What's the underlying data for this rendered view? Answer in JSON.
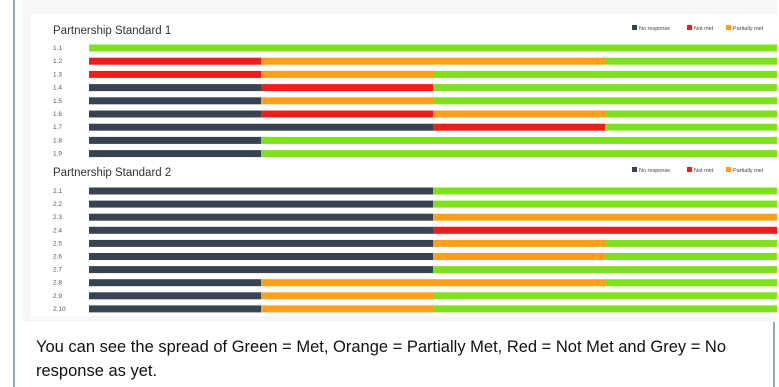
{
  "colors": {
    "no_response": "#374351",
    "not_met": "#f01b1b",
    "partially_met": "#ff9f1a",
    "met": "#7fe01c"
  },
  "chart_data": [
    {
      "type": "bar",
      "stacked": true,
      "orientation": "horizontal",
      "title": "Partnership Standard 1",
      "legend": [
        "No response",
        "Not met",
        "Partially met",
        "Met"
      ],
      "legend_position": "top-right",
      "xlim": [
        0,
        4
      ],
      "categories": [
        "1.1",
        "1.2",
        "1.3",
        "1.4",
        "1.5",
        "1.6",
        "1.7",
        "1.8",
        "1.9"
      ],
      "series": [
        {
          "name": "No response",
          "values": [
            0,
            0,
            0,
            1,
            1,
            1,
            2,
            1,
            1
          ]
        },
        {
          "name": "Not met",
          "values": [
            0,
            1,
            1,
            1,
            0,
            1,
            1,
            0,
            0
          ]
        },
        {
          "name": "Partially met",
          "values": [
            0,
            2,
            1,
            0,
            1,
            1,
            0,
            0,
            0
          ]
        },
        {
          "name": "Met",
          "values": [
            4,
            1,
            2,
            2,
            2,
            1,
            1,
            3,
            3
          ]
        }
      ]
    },
    {
      "type": "bar",
      "stacked": true,
      "orientation": "horizontal",
      "title": "Partnership Standard 2",
      "legend": [
        "No response",
        "Not met",
        "Partially met",
        "Met"
      ],
      "legend_position": "top-right",
      "xlim": [
        0,
        4
      ],
      "categories": [
        "2.1",
        "2.2",
        "2.3",
        "2.4",
        "2.5",
        "2.6",
        "2.7",
        "2.8",
        "2.9",
        "2.10"
      ],
      "series": [
        {
          "name": "No response",
          "values": [
            2,
            2,
            2,
            2,
            2,
            2,
            2,
            1,
            1,
            1
          ]
        },
        {
          "name": "Not met",
          "values": [
            0,
            0,
            0,
            2,
            0,
            0,
            0,
            0,
            0,
            0
          ]
        },
        {
          "name": "Partially met",
          "values": [
            0,
            0,
            2,
            0,
            1,
            1,
            0,
            2,
            1,
            1
          ]
        },
        {
          "name": "Met",
          "values": [
            2,
            2,
            0,
            0,
            1,
            1,
            2,
            1,
            2,
            2
          ]
        }
      ]
    }
  ],
  "caption": "You can see the spread of Green = Met, Orange = Partially Met, Red = Not Met and Grey = No response as yet."
}
